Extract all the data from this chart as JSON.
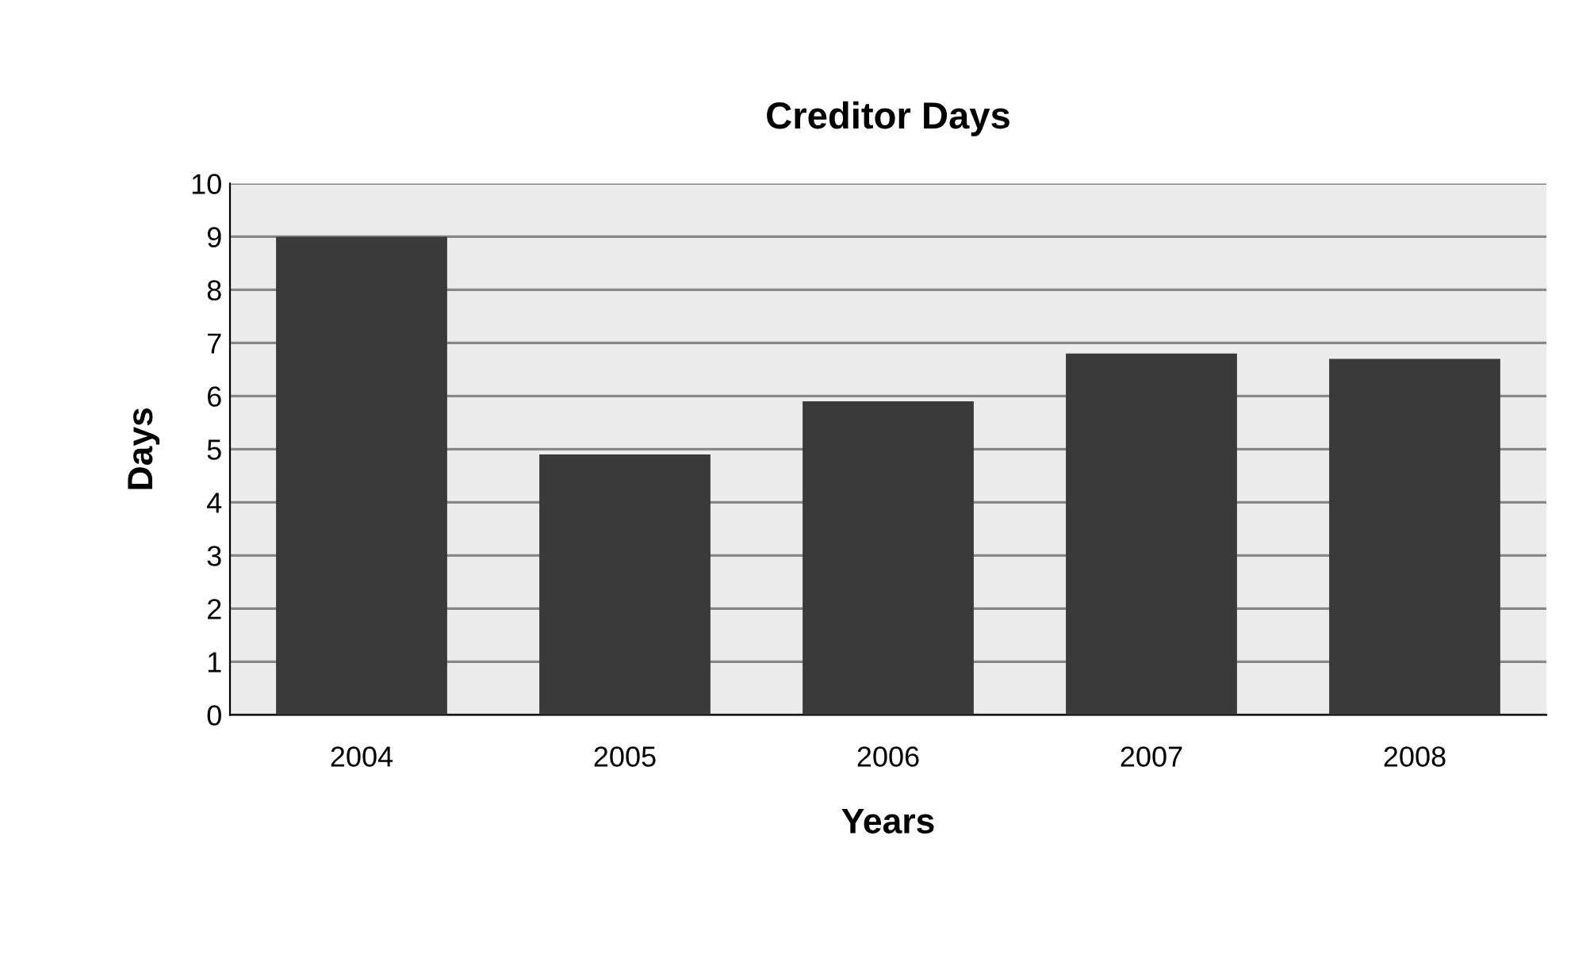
{
  "chart_data": {
    "type": "bar",
    "title": "Creditor Days",
    "xlabel": "Years",
    "ylabel": "Days",
    "categories": [
      "2004",
      "2005",
      "2006",
      "2007",
      "2008"
    ],
    "values": [
      9,
      4.9,
      5.9,
      6.8,
      6.7
    ],
    "color": "#3a3a3a",
    "ylim": [
      0,
      10
    ],
    "yticks": [
      0,
      1,
      2,
      3,
      4,
      5,
      6,
      7,
      8,
      9,
      10
    ],
    "grid": "y",
    "legend": false
  }
}
